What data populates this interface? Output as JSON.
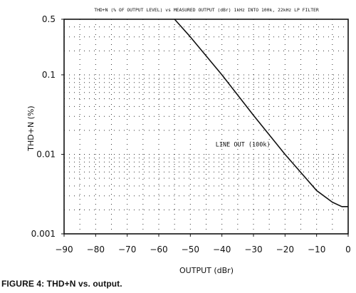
{
  "caption": "FIGURE 4: THD+N vs. output.",
  "chart_data": {
    "type": "line",
    "title": "THD+N (% OF OUTPUT LEVEL) vs MEASURED OUTPUT (dBr) 1kHz INTO 100k, 22kHz LP FILTER",
    "xlabel": "OUTPUT (dBr)",
    "ylabel": "THD+N (%)",
    "xlim": [
      -90,
      0
    ],
    "ylim": [
      0.001,
      0.5
    ],
    "yscale": "log",
    "xticks": [
      -90,
      -80,
      -70,
      -60,
      -50,
      -40,
      -30,
      -20,
      -10,
      0
    ],
    "xtick_labels": [
      "−90",
      "−80",
      "−70",
      "−60",
      "−50",
      "−40",
      "−30",
      "−20",
      "−10",
      "0"
    ],
    "yticks": [
      0.5,
      0.1,
      0.01,
      0.001
    ],
    "ytick_labels": [
      "0.5",
      "0.1",
      "0.01",
      "0.001"
    ],
    "grid": true,
    "grid_style": "dotted",
    "series": [
      {
        "name": "LINE OUT (100k)",
        "x": [
          -55,
          -50,
          -40,
          -30,
          -20,
          -10,
          -5,
          -2,
          0
        ],
        "y": [
          0.5,
          0.3,
          0.1,
          0.031,
          0.01,
          0.0035,
          0.0025,
          0.0022,
          0.0022
        ]
      }
    ],
    "annotations": [
      {
        "text": "LINE OUT (100k)",
        "x": -42,
        "y": 0.0125
      }
    ],
    "line_color": "#111111",
    "grid_color": "#333333"
  }
}
